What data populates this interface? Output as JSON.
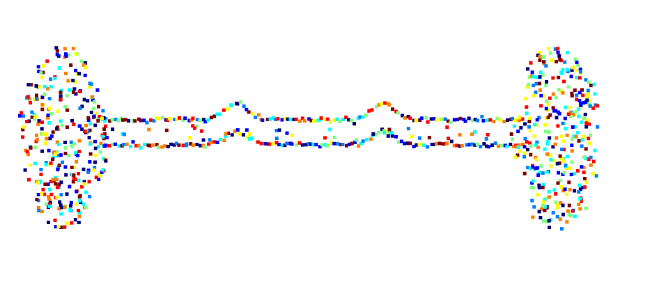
{
  "scene": {
    "description_shown": "",
    "background": "#ffffff",
    "colormap": [
      "#00007f",
      "#0000ff",
      "#007fff",
      "#00ffff",
      "#7fff7f",
      "#ffff00",
      "#ff7f00",
      "#ff0000",
      "#7f0000"
    ],
    "point_cloud": {
      "shape": "bar-with-two-bulbous-ends",
      "marker": "square"
    }
  }
}
